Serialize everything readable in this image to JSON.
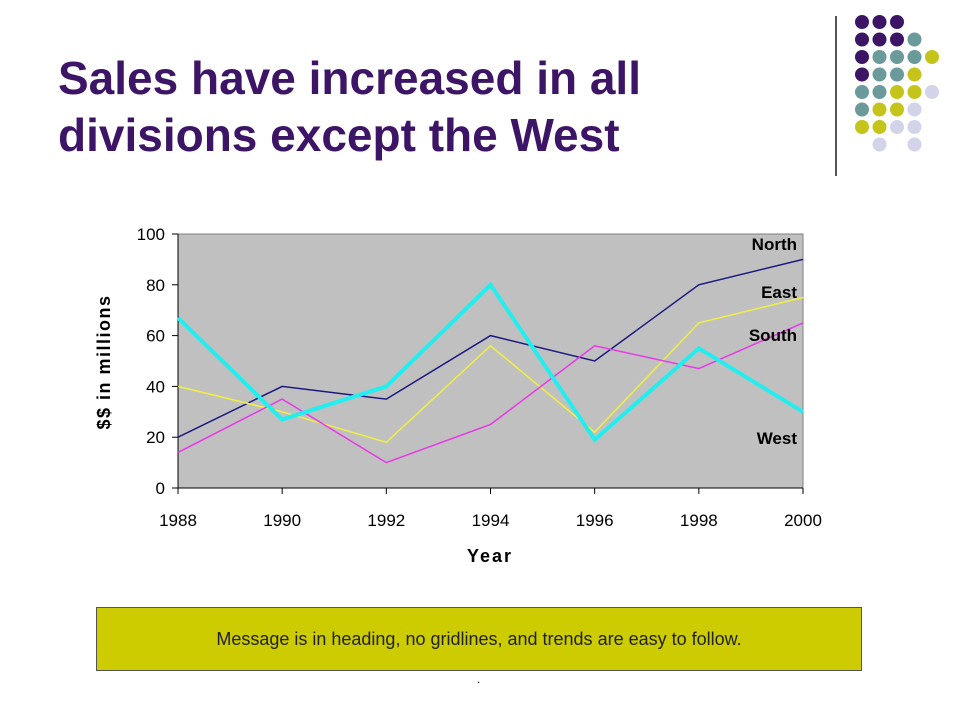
{
  "slide": {
    "title_line1": "Sales have increased in all",
    "title_line2": "divisions except the West",
    "message": "Message is in heading, no gridlines, and trends are easy to follow.",
    "footnote": "."
  },
  "colors": {
    "title": "#3d1566",
    "plot_bg": "#c0c0c0",
    "message_bg": "#cccc00",
    "divider": "#555555",
    "dot_purple": "#3d1566",
    "dot_teal": "#6b9a9a",
    "dot_olive": "#c4c41a",
    "dot_lavender": "#d3d3ea"
  },
  "decor_dots": [
    [
      "purple",
      "purple",
      "purple",
      null,
      null
    ],
    [
      "purple",
      "purple",
      "purple",
      "teal",
      null
    ],
    [
      "purple",
      "teal",
      "teal",
      "teal",
      "olive"
    ],
    [
      "purple",
      "teal",
      "teal",
      "olive",
      null
    ],
    [
      "teal",
      "teal",
      "olive",
      "olive",
      "lavender"
    ],
    [
      "teal",
      "olive",
      "olive",
      "lavender",
      null
    ],
    [
      "olive",
      "olive",
      "lavender",
      "lavender",
      null
    ],
    [
      null,
      "lavender",
      null,
      "lavender",
      null
    ]
  ],
  "chart_data": {
    "type": "line",
    "title": "",
    "xlabel": "Year",
    "ylabel": "$$ in millions",
    "x": [
      1988,
      1990,
      1992,
      1994,
      1996,
      1998,
      2000
    ],
    "x_ticks": [
      "1988",
      "1990",
      "1992",
      "1994",
      "1996",
      "1998",
      "2000"
    ],
    "y_ticks": [
      "0",
      "20",
      "40",
      "60",
      "80",
      "100"
    ],
    "ylim": [
      0,
      100
    ],
    "grid": false,
    "series": [
      {
        "name": "North",
        "color": "#1a1a80",
        "width": 1.5,
        "values": [
          20,
          40,
          35,
          60,
          50,
          80,
          90
        ]
      },
      {
        "name": "East",
        "color": "#f0f040",
        "width": 1.5,
        "values": [
          40,
          30,
          18,
          56,
          22,
          65,
          75
        ]
      },
      {
        "name": "South",
        "color": "#e838e8",
        "width": 1.5,
        "values": [
          14,
          35,
          10,
          25,
          56,
          47,
          65
        ]
      },
      {
        "name": "West",
        "color": "#22eef0",
        "width": 4,
        "values": [
          67,
          27,
          40,
          80,
          19,
          55,
          30
        ]
      }
    ]
  }
}
